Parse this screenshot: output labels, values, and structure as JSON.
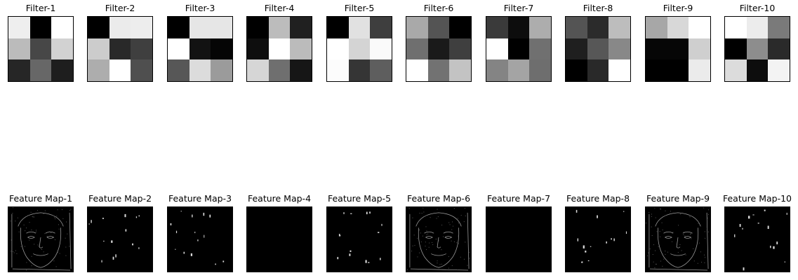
{
  "filters": [
    {
      "title": "Filter-1",
      "cells": [
        "#eeeeee",
        "#000000",
        "#ffffff",
        "#bbbbbb",
        "#474747",
        "#d2d2d2",
        "#262626",
        "#676767",
        "#1e1e1e"
      ]
    },
    {
      "title": "Filter-2",
      "cells": [
        "#000000",
        "#ebebeb",
        "#ededed",
        "#cccccc",
        "#292929",
        "#3f3f3f",
        "#adadad",
        "#ffffff",
        "#4f4f4f"
      ]
    },
    {
      "title": "Filter-3",
      "cells": [
        "#000000",
        "#e6e6e6",
        "#e6e6e6",
        "#ffffff",
        "#121212",
        "#050505",
        "#575757",
        "#dcdcdc",
        "#9b9b9b"
      ]
    },
    {
      "title": "Filter-4",
      "cells": [
        "#000000",
        "#bcbcbc",
        "#202020",
        "#0e0e0e",
        "#ffffff",
        "#bbbbbb",
        "#d6d6d6",
        "#6f6f6f",
        "#161616"
      ]
    },
    {
      "title": "Filter-5",
      "cells": [
        "#000000",
        "#e1e1e1",
        "#3e3e3e",
        "#ffffff",
        "#d4d4d4",
        "#fafafa",
        "#fcfcfc",
        "#353535",
        "#5e5e5e"
      ]
    },
    {
      "title": "Filter-6",
      "cells": [
        "#a9a9a9",
        "#545454",
        "#000000",
        "#6f6f6f",
        "#1a1a1a",
        "#3f3f3f",
        "#ffffff",
        "#727272",
        "#c3c3c3"
      ]
    },
    {
      "title": "Filter-7",
      "cells": [
        "#3a3a3a",
        "#0d0d0d",
        "#adadad",
        "#ffffff",
        "#000000",
        "#707070",
        "#848484",
        "#a4a4a4",
        "#6e6e6e"
      ]
    },
    {
      "title": "Filter-8",
      "cells": [
        "#545454",
        "#2b2b2b",
        "#bdbdbd",
        "#1f1f1f",
        "#575757",
        "#888888",
        "#000000",
        "#292929",
        "#ffffff"
      ]
    },
    {
      "title": "Filter-9",
      "cells": [
        "#a7a7a7",
        "#d8d8d8",
        "#ffffff",
        "#060606",
        "#060606",
        "#cfcfcf",
        "#000000",
        "#000000",
        "#ebebeb"
      ]
    },
    {
      "title": "Filter-10",
      "cells": [
        "#ffffff",
        "#ececec",
        "#7a7a7a",
        "#000000",
        "#8d8d8d",
        "#2a2a2a",
        "#dcdcdc",
        "#0d0d0d",
        "#f3f3f3"
      ]
    }
  ],
  "feature_maps": [
    {
      "title": "Feature Map-1",
      "activation": "strong"
    },
    {
      "title": "Feature Map-2",
      "activation": "sparse"
    },
    {
      "title": "Feature Map-3",
      "activation": "sparse"
    },
    {
      "title": "Feature Map-4",
      "activation": "none"
    },
    {
      "title": "Feature Map-5",
      "activation": "sparse"
    },
    {
      "title": "Feature Map-6",
      "activation": "strong"
    },
    {
      "title": "Feature Map-7",
      "activation": "none"
    },
    {
      "title": "Feature Map-8",
      "activation": "sparse"
    },
    {
      "title": "Feature Map-9",
      "activation": "strong"
    },
    {
      "title": "Feature Map-10",
      "activation": "sparse"
    }
  ]
}
